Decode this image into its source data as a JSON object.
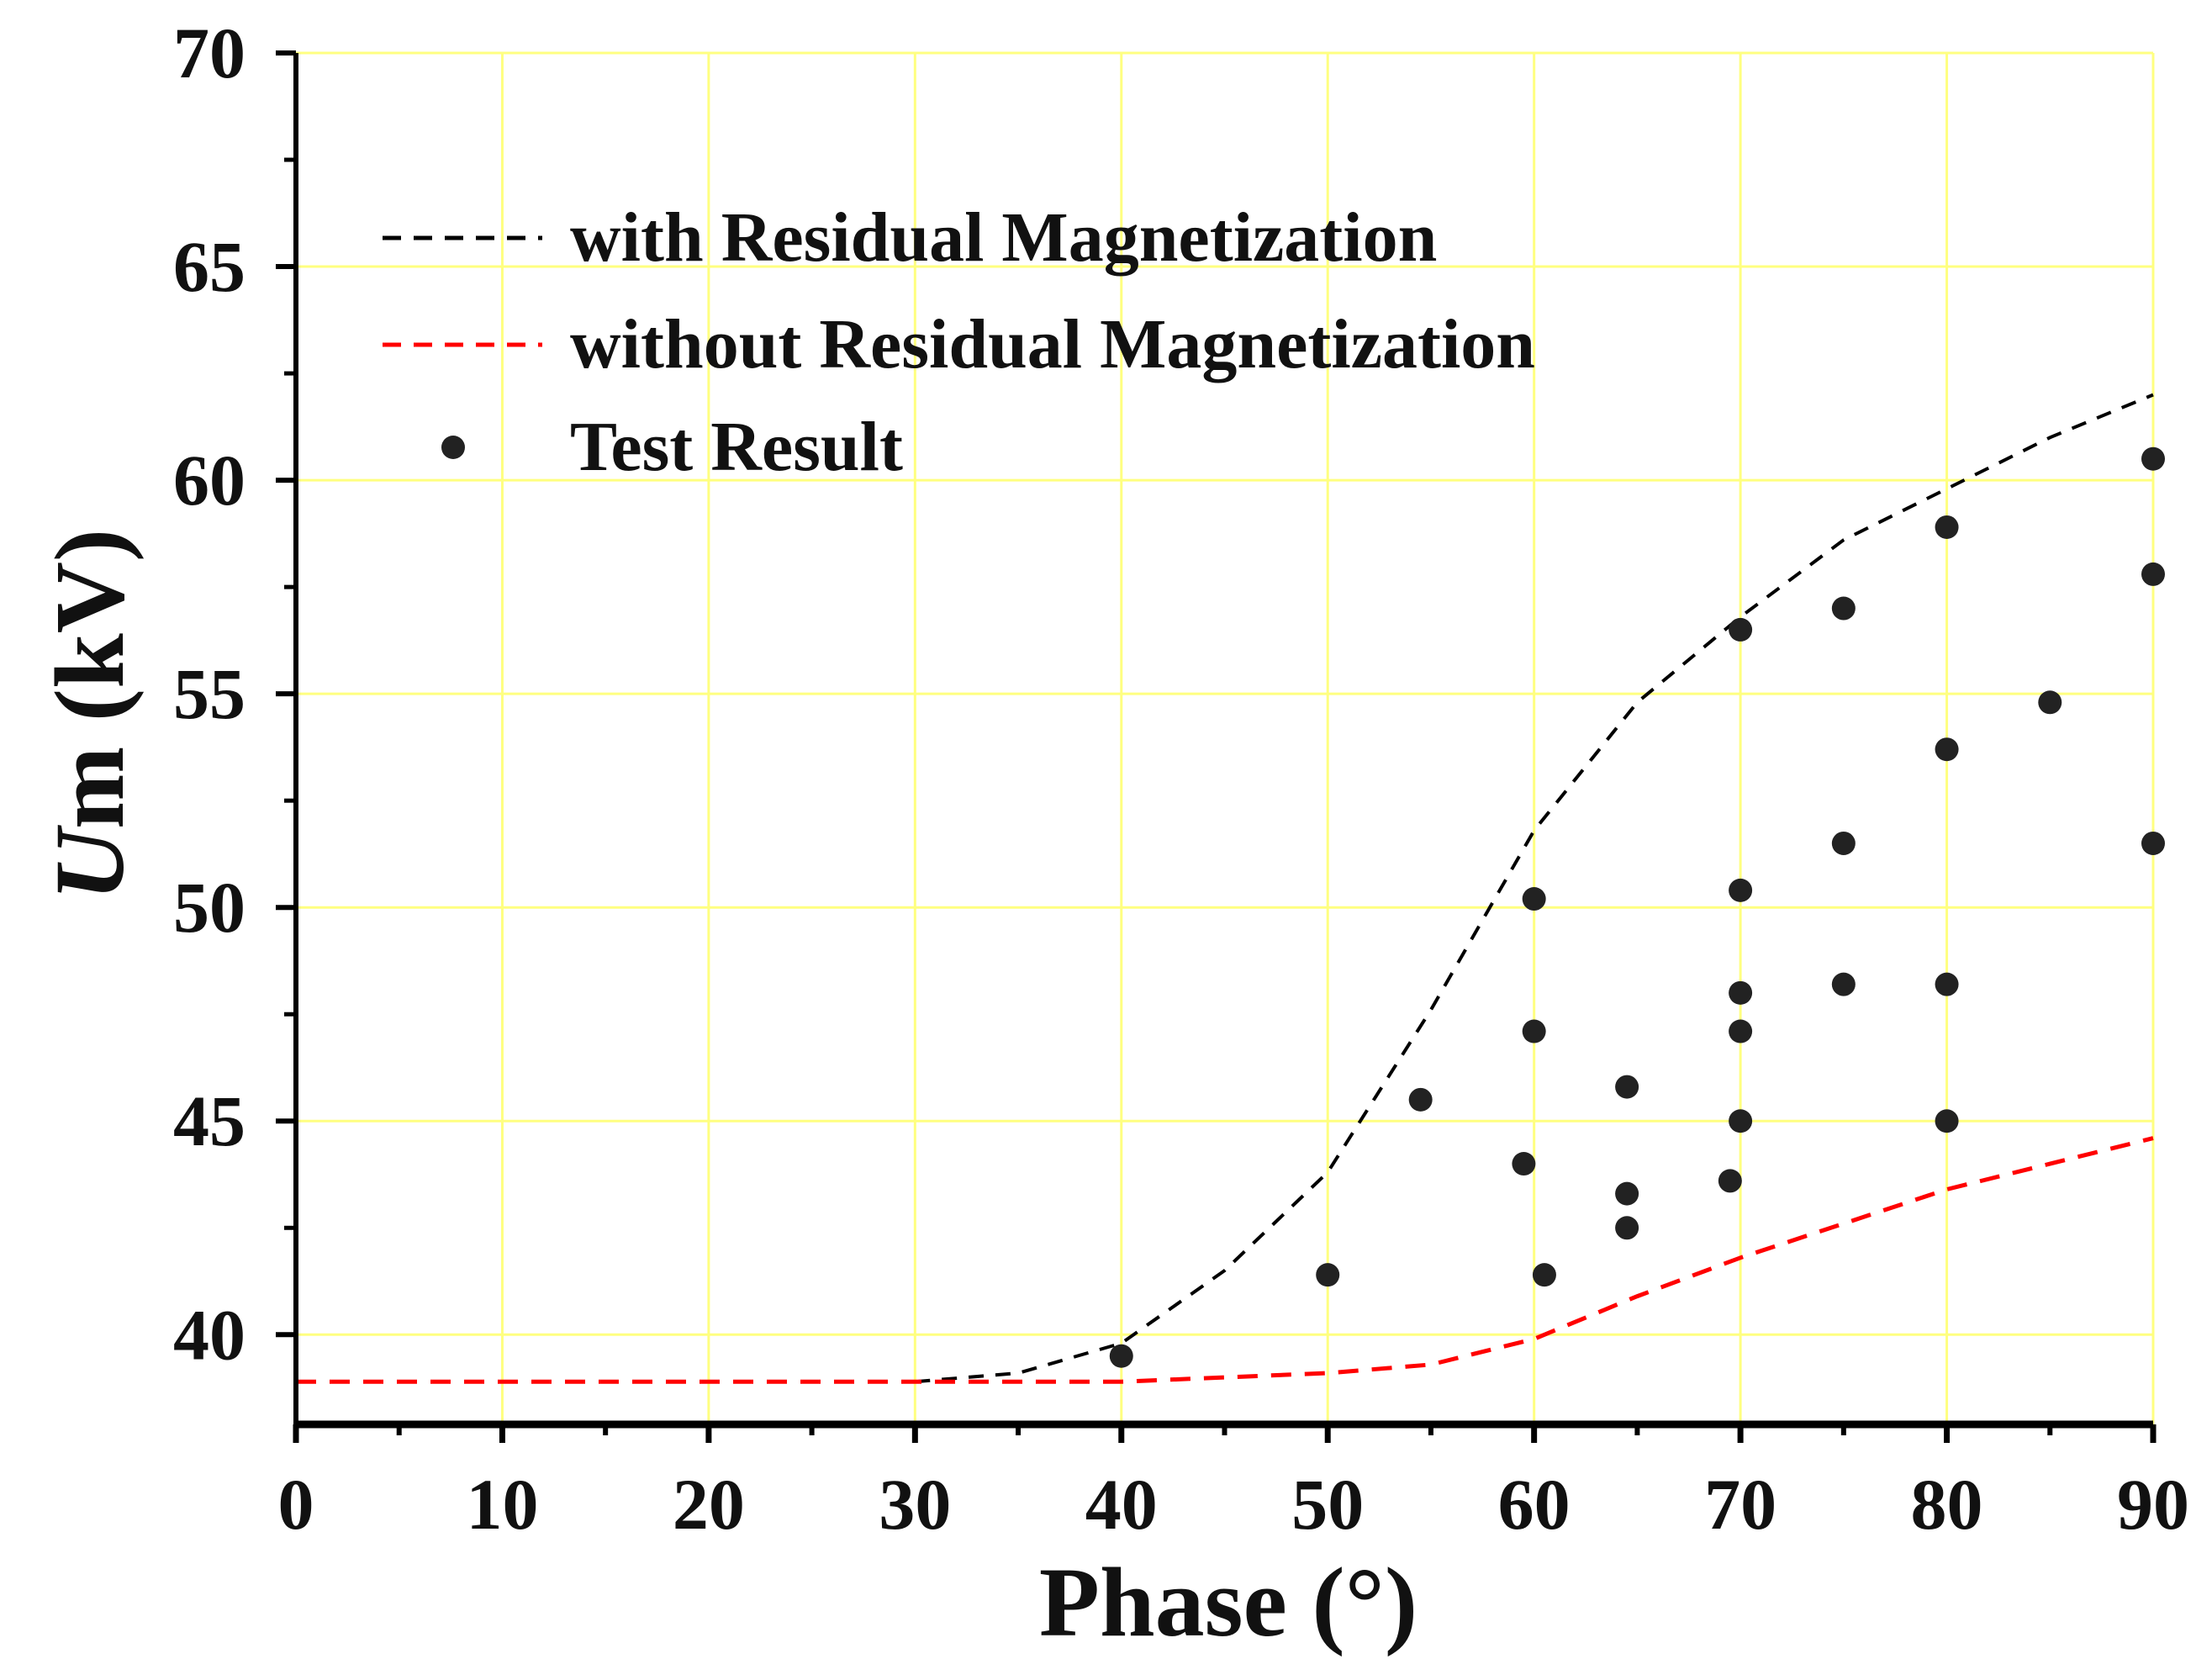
{
  "chart_data": {
    "type": "scatter",
    "title": "",
    "xlabel": "Phase (°)",
    "ylabel_italic": "U",
    "ylabel_rest": "m (kV)",
    "xlim": [
      0,
      90
    ],
    "ylim": [
      37.9,
      70
    ],
    "x_ticks": [
      0,
      10,
      20,
      30,
      40,
      50,
      60,
      70,
      80,
      90
    ],
    "y_ticks": [
      40,
      45,
      50,
      55,
      60,
      65,
      70
    ],
    "grid": true,
    "grid_color": "#ffff80",
    "legend_position": "top-left",
    "legend": [
      {
        "label": "with Residual Magnetization",
        "style": "dashed-line",
        "color": "#000000"
      },
      {
        "label": "without Residual Magnetization",
        "style": "dashed-line",
        "color": "#ff0000"
      },
      {
        "label": "Test Result",
        "style": "marker",
        "color": "#222222"
      }
    ],
    "series": [
      {
        "name": "with Residual Magnetization",
        "kind": "line",
        "color": "#000000",
        "x": [
          30,
          35,
          40,
          45,
          50,
          55,
          60,
          65,
          70,
          75,
          80,
          85,
          90
        ],
        "y": [
          38.9,
          39.1,
          39.8,
          41.5,
          43.8,
          47.6,
          51.8,
          54.8,
          56.8,
          58.6,
          59.8,
          61.0,
          62.0
        ]
      },
      {
        "name": "without Residual Magnetization",
        "kind": "line",
        "color": "#ff0000",
        "x": [
          0,
          10,
          20,
          30,
          40,
          50,
          55,
          60,
          65,
          70,
          75,
          80,
          85,
          90
        ],
        "y": [
          38.9,
          38.9,
          38.9,
          38.9,
          38.9,
          39.1,
          39.3,
          39.9,
          40.9,
          41.8,
          42.6,
          43.4,
          44.0,
          44.6
        ]
      },
      {
        "name": "Test Result",
        "kind": "scatter",
        "color": "#222222",
        "x": [
          40,
          50,
          54.5,
          59.5,
          60,
          60,
          60.5,
          64.5,
          64.5,
          64.5,
          69.5,
          70,
          70,
          70,
          70,
          70,
          75,
          75,
          75,
          80,
          80,
          80,
          80,
          85,
          90,
          90,
          90
        ],
        "y": [
          39.5,
          41.4,
          45.5,
          44.0,
          47.1,
          50.2,
          41.4,
          45.8,
          43.3,
          42.5,
          43.6,
          45.0,
          47.1,
          48.0,
          50.4,
          56.5,
          57.0,
          51.5,
          48.2,
          58.9,
          53.7,
          48.2,
          45.0,
          54.8,
          60.5,
          57.8,
          51.5
        ]
      }
    ]
  }
}
